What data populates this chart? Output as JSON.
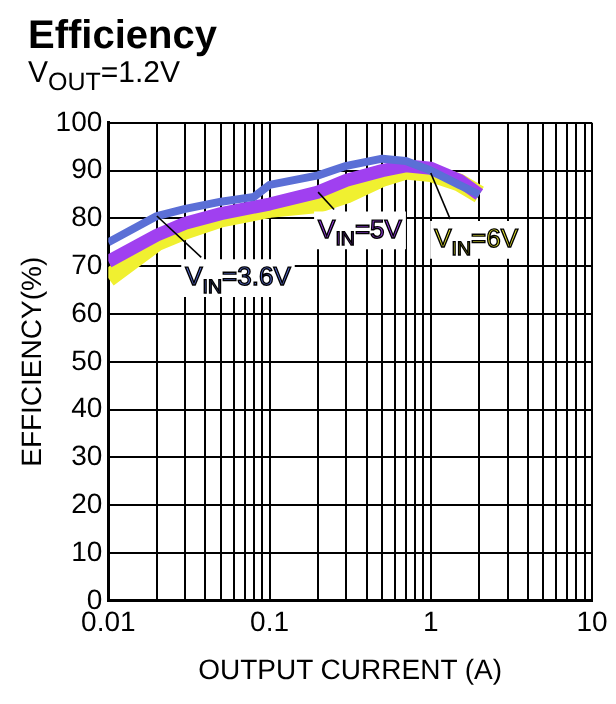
{
  "chart_data": {
    "type": "line",
    "title": "Efficiency",
    "subtitle": "V$_{OUT}$=1.2V",
    "xlabel": "OUTPUT CURRENT (A)",
    "ylabel": "EFFICIENCY(%)",
    "series": [
      {
        "name": "V$_{IN}$=3.6V",
        "color": "#5b6fd6",
        "x": [
          0.01,
          0.02,
          0.03,
          0.05,
          0.08,
          0.1,
          0.2,
          0.3,
          0.5,
          0.7,
          1,
          1.5,
          2
        ],
        "values": [
          75,
          80.5,
          82,
          83.5,
          84.5,
          87,
          89,
          91,
          92.5,
          92,
          90,
          87,
          85
        ]
      },
      {
        "name": "V$_{IN}$=5V",
        "color": "#a040f0",
        "x": [
          0.01,
          0.02,
          0.03,
          0.05,
          0.1,
          0.2,
          0.3,
          0.5,
          0.7,
          1,
          1.5,
          2
        ],
        "values": [
          71,
          76.5,
          79,
          81,
          83,
          85.5,
          88,
          90,
          91,
          90.5,
          88,
          85
        ]
      },
      {
        "name": "V$_{IN}$=6V",
        "color": "#f0f030",
        "x": [
          0.01,
          0.02,
          0.03,
          0.05,
          0.1,
          0.2,
          0.3,
          0.5,
          0.7,
          1,
          1.5,
          2
        ],
        "values": [
          67.5,
          75,
          77.5,
          80,
          82,
          83,
          85,
          88.5,
          90,
          89.5,
          87.5,
          85
        ]
      }
    ],
    "log": "x",
    "xlim": [
      0.01,
      10
    ],
    "xticks": [
      0.01,
      {
        "value": 0.02,
        "label": null
      },
      {
        "value": 0.03,
        "label": null
      },
      {
        "value": 0.04,
        "label": null
      },
      {
        "value": 0.05,
        "label": null
      },
      {
        "value": 0.06,
        "label": null
      },
      {
        "value": 0.07,
        "label": null
      },
      {
        "value": 0.08,
        "label": null
      },
      {
        "value": 0.09,
        "label": null
      },
      0.1,
      {
        "value": 0.2,
        "label": null
      },
      {
        "value": 0.3,
        "label": null
      },
      {
        "value": 0.4,
        "label": null
      },
      {
        "value": 0.5,
        "label": null
      },
      {
        "value": 0.6,
        "label": null
      },
      {
        "value": 0.7,
        "label": null
      },
      {
        "value": 0.8,
        "label": null
      },
      {
        "value": 0.9,
        "label": null
      },
      1,
      {
        "value": 2,
        "label": null
      },
      {
        "value": 3,
        "label": null
      },
      {
        "value": 4,
        "label": null
      },
      {
        "value": 5,
        "label": null
      },
      {
        "value": 6,
        "label": null
      },
      {
        "value": 7,
        "label": null
      },
      {
        "value": 8,
        "label": null
      },
      {
        "value": 9,
        "label": null
      },
      10
    ],
    "ylim": [
      0,
      100
    ],
    "yticks": [
      0,
      10,
      20,
      30,
      40,
      50,
      60,
      70,
      80,
      90,
      100
    ],
    "grid": true,
    "legend": false,
    "marker": "none",
    "line_style": "solid"
  }
}
